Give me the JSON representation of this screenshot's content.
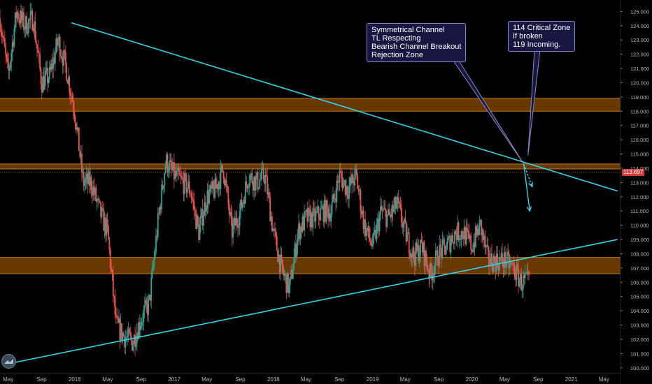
{
  "symbol_price": "113.697",
  "colors": {
    "background": "#000000",
    "zone": "#8a4b00",
    "trendline": "#2fd6e8",
    "candle_up": "#26a69a",
    "candle_down": "#ef5350",
    "price_badge": "#d63a3a",
    "note_bg": "#161640",
    "note_border": "#8888c8"
  },
  "annotations": {
    "left_note": {
      "lines": [
        "Symmetrical Channel",
        "TL Respecting",
        "Bearish Channel Breakout",
        "Rejection Zone"
      ]
    },
    "right_note": {
      "lines": [
        "114 Critical Zone",
        "If broken",
        "119 Incoming."
      ]
    }
  },
  "chart_data": {
    "type": "candlestick",
    "y_axis": {
      "position": "right",
      "range": [
        99.6,
        125.8
      ],
      "ticks": [
        "100.000",
        "101.000",
        "102.000",
        "103.000",
        "104.000",
        "105.000",
        "106.000",
        "107.000",
        "108.000",
        "109.000",
        "110.000",
        "111.000",
        "112.000",
        "113.000",
        "114.000",
        "115.000",
        "116.000",
        "117.000",
        "118.000",
        "119.000",
        "120.000",
        "121.000",
        "122.000",
        "123.000",
        "124.000",
        "125.000"
      ]
    },
    "x_axis": {
      "range": [
        "2015-04",
        "2021-07"
      ],
      "ticks": [
        {
          "label": "May",
          "date": "2015-05"
        },
        {
          "label": "Sep",
          "date": "2015-09"
        },
        {
          "label": "2016",
          "date": "2016-01"
        },
        {
          "label": "May",
          "date": "2016-05"
        },
        {
          "label": "Sep",
          "date": "2016-09"
        },
        {
          "label": "2017",
          "date": "2017-01"
        },
        {
          "label": "May",
          "date": "2017-05"
        },
        {
          "label": "Sep",
          "date": "2017-09"
        },
        {
          "label": "2018",
          "date": "2018-01"
        },
        {
          "label": "May",
          "date": "2018-05"
        },
        {
          "label": "Sep",
          "date": "2018-09"
        },
        {
          "label": "2019",
          "date": "2019-01"
        },
        {
          "label": "May",
          "date": "2019-05"
        },
        {
          "label": "Sep",
          "date": "2019-09"
        },
        {
          "label": "2020",
          "date": "2020-01"
        },
        {
          "label": "May",
          "date": "2020-05"
        },
        {
          "label": "Sep",
          "date": "2020-09"
        },
        {
          "label": "2021",
          "date": "2021-01"
        },
        {
          "label": "May",
          "date": "2021-05"
        }
      ]
    },
    "current_price": 113.697,
    "zones": [
      {
        "from": 118.0,
        "to": 118.9
      },
      {
        "from": 113.95,
        "to": 114.3
      },
      {
        "from": 106.6,
        "to": 107.75
      }
    ],
    "trendlines": [
      {
        "from": {
          "date": "2015-12-20",
          "value": 124.2
        },
        "to": {
          "date": "2021-06-20",
          "value": 112.4
        }
      },
      {
        "from": {
          "date": "2015-04-10",
          "value": 100.2
        },
        "to": {
          "date": "2021-06-20",
          "value": 109.0
        }
      }
    ],
    "arrows": [
      {
        "from": {
          "date": "2020-07-10",
          "value": 114.3
        },
        "to": {
          "date": "2020-08-10",
          "value": 112.7
        }
      },
      {
        "from": {
          "date": "2020-07-10",
          "value": 114.3
        },
        "to": {
          "date": "2020-08-01",
          "value": 111.0
        }
      }
    ],
    "price_path": [
      {
        "date": "2015-04-01",
        "value": 124.5
      },
      {
        "date": "2015-05-01",
        "value": 120.5
      },
      {
        "date": "2015-06-01",
        "value": 125.0
      },
      {
        "date": "2015-07-01",
        "value": 124.0
      },
      {
        "date": "2015-08-01",
        "value": 124.5
      },
      {
        "date": "2015-09-01",
        "value": 120.0
      },
      {
        "date": "2015-10-01",
        "value": 120.5
      },
      {
        "date": "2015-11-01",
        "value": 123.0
      },
      {
        "date": "2015-12-01",
        "value": 121.0
      },
      {
        "date": "2016-01-01",
        "value": 118.0
      },
      {
        "date": "2016-02-01",
        "value": 113.0
      },
      {
        "date": "2016-03-01",
        "value": 113.0
      },
      {
        "date": "2016-04-01",
        "value": 111.0
      },
      {
        "date": "2016-05-01",
        "value": 109.5
      },
      {
        "date": "2016-06-01",
        "value": 103.0
      },
      {
        "date": "2016-07-01",
        "value": 102.2
      },
      {
        "date": "2016-08-01",
        "value": 101.8
      },
      {
        "date": "2016-09-01",
        "value": 103.4
      },
      {
        "date": "2016-10-01",
        "value": 104.5
      },
      {
        "date": "2016-11-01",
        "value": 110.0
      },
      {
        "date": "2016-12-01",
        "value": 114.5
      },
      {
        "date": "2017-01-01",
        "value": 113.5
      },
      {
        "date": "2017-02-01",
        "value": 113.0
      },
      {
        "date": "2017-03-01",
        "value": 112.5
      },
      {
        "date": "2017-04-01",
        "value": 109.5
      },
      {
        "date": "2017-05-01",
        "value": 112.0
      },
      {
        "date": "2017-06-01",
        "value": 112.5
      },
      {
        "date": "2017-07-01",
        "value": 114.0
      },
      {
        "date": "2017-08-01",
        "value": 109.5
      },
      {
        "date": "2017-09-01",
        "value": 111.0
      },
      {
        "date": "2017-10-01",
        "value": 113.5
      },
      {
        "date": "2017-11-01",
        "value": 113.0
      },
      {
        "date": "2017-12-01",
        "value": 113.5
      },
      {
        "date": "2018-01-01",
        "value": 109.5
      },
      {
        "date": "2018-02-01",
        "value": 106.8
      },
      {
        "date": "2018-03-01",
        "value": 105.5
      },
      {
        "date": "2018-04-01",
        "value": 109.5
      },
      {
        "date": "2018-05-01",
        "value": 110.5
      },
      {
        "date": "2018-06-01",
        "value": 110.5
      },
      {
        "date": "2018-07-01",
        "value": 111.0
      },
      {
        "date": "2018-08-01",
        "value": 111.0
      },
      {
        "date": "2018-09-01",
        "value": 113.5
      },
      {
        "date": "2018-10-01",
        "value": 112.5
      },
      {
        "date": "2018-11-01",
        "value": 113.5
      },
      {
        "date": "2018-12-01",
        "value": 110.0
      },
      {
        "date": "2019-01-01",
        "value": 108.5
      },
      {
        "date": "2019-02-01",
        "value": 111.0
      },
      {
        "date": "2019-03-01",
        "value": 110.5
      },
      {
        "date": "2019-04-01",
        "value": 111.5
      },
      {
        "date": "2019-05-01",
        "value": 109.5
      },
      {
        "date": "2019-06-01",
        "value": 107.8
      },
      {
        "date": "2019-07-01",
        "value": 108.5
      },
      {
        "date": "2019-08-01",
        "value": 106.5
      },
      {
        "date": "2019-09-01",
        "value": 108.0
      },
      {
        "date": "2019-10-01",
        "value": 108.5
      },
      {
        "date": "2019-11-01",
        "value": 109.5
      },
      {
        "date": "2019-12-01",
        "value": 109.5
      },
      {
        "date": "2020-01-01",
        "value": 108.5
      },
      {
        "date": "2020-02-01",
        "value": 110.0
      },
      {
        "date": "2020-03-01",
        "value": 107.5
      },
      {
        "date": "2020-04-01",
        "value": 107.5
      },
      {
        "date": "2020-05-01",
        "value": 107.5
      },
      {
        "date": "2020-06-01",
        "value": 107.0
      },
      {
        "date": "2020-07-01",
        "value": 106.0
      },
      {
        "date": "2020-08-01",
        "value": 106.0
      }
    ]
  }
}
